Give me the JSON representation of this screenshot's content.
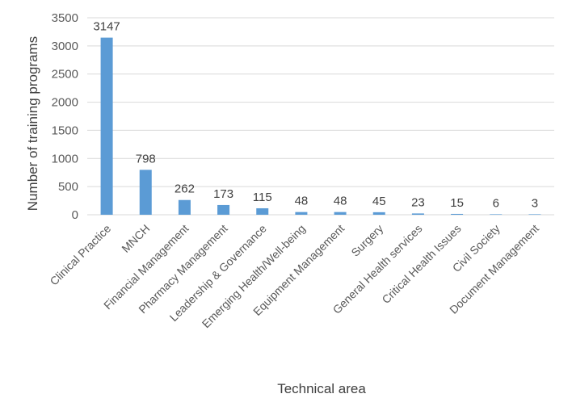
{
  "chart_data": {
    "type": "bar",
    "categories": [
      "Clinical Practice",
      "MNCH",
      "Financial Management",
      "Pharmacy Management",
      "Leadership & Governance",
      "Emerging Health/Well-being",
      "Equipment Management",
      "Surgery",
      "General Health services",
      "Critical Health Issues",
      "Civil Society",
      "Document Management"
    ],
    "values": [
      3147,
      798,
      262,
      173,
      115,
      48,
      48,
      45,
      23,
      15,
      6,
      3
    ],
    "data_labels": [
      "3147",
      "798",
      "262",
      "173",
      "115",
      "48",
      "48",
      "45",
      "23",
      "15",
      "6",
      "3"
    ],
    "xlabel": "Technical area",
    "ylabel": "Number of training programs",
    "ylim": [
      0,
      3500
    ],
    "yticks": [
      "0",
      "500",
      "1000",
      "1500",
      "2000",
      "2500",
      "3000",
      "3500"
    ],
    "grid": true,
    "legend": "none",
    "bar_color": "#5b9bd5",
    "grid_color": "#d9d9d9"
  }
}
